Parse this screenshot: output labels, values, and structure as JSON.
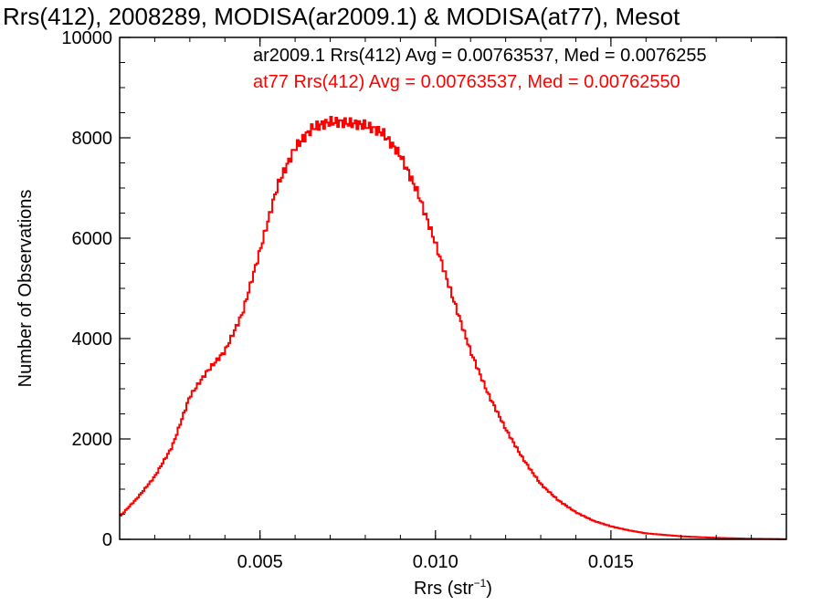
{
  "chart_data": {
    "type": "histogram",
    "title": "Rrs(412), 2008289, MODISA(ar2009.1) & MODISA(at77), Mesot",
    "xlabel_base": "Rrs (str",
    "xlabel_sup": "−1",
    "xlabel_end": ")",
    "ylabel": "Number of Observations",
    "xlim": [
      0.001,
      0.02
    ],
    "ylim": [
      0,
      10000
    ],
    "xticks": [
      {
        "value": 0.005,
        "label": "0.005"
      },
      {
        "value": 0.01,
        "label": "0.010"
      },
      {
        "value": 0.015,
        "label": "0.015"
      }
    ],
    "yticks": [
      {
        "value": 0,
        "label": "0"
      },
      {
        "value": 2000,
        "label": "2000"
      },
      {
        "value": 4000,
        "label": "4000"
      },
      {
        "value": 6000,
        "label": "6000"
      },
      {
        "value": 8000,
        "label": "8000"
      },
      {
        "value": 10000,
        "label": "10000"
      }
    ],
    "annotations": [
      {
        "text": "ar2009.1 Rrs(412) Avg = 0.00763537, Med = 0.0076255",
        "color": "#000000"
      },
      {
        "text": "at77 Rrs(412) Avg = 0.00763537, Med = 0.00762550",
        "color": "#ff0000"
      }
    ],
    "series": [
      {
        "name": "ar2009.1",
        "color": "#000000",
        "profile": [
          [
            0.001,
            450
          ],
          [
            0.0015,
            820
          ],
          [
            0.002,
            1250
          ],
          [
            0.0025,
            1850
          ],
          [
            0.003,
            2850
          ],
          [
            0.0035,
            3350
          ],
          [
            0.004,
            3750
          ],
          [
            0.0045,
            4500
          ],
          [
            0.005,
            5750
          ],
          [
            0.0055,
            7050
          ],
          [
            0.006,
            7800
          ],
          [
            0.0065,
            8200
          ],
          [
            0.007,
            8320
          ],
          [
            0.0075,
            8300
          ],
          [
            0.008,
            8250
          ],
          [
            0.0085,
            8100
          ],
          [
            0.009,
            7650
          ],
          [
            0.0095,
            6900
          ],
          [
            0.01,
            5900
          ],
          [
            0.0105,
            4800
          ],
          [
            0.011,
            3750
          ],
          [
            0.0115,
            2900
          ],
          [
            0.012,
            2200
          ],
          [
            0.0125,
            1600
          ],
          [
            0.013,
            1100
          ],
          [
            0.0135,
            780
          ],
          [
            0.014,
            540
          ],
          [
            0.0145,
            370
          ],
          [
            0.015,
            260
          ],
          [
            0.0155,
            180
          ],
          [
            0.016,
            120
          ],
          [
            0.017,
            60
          ],
          [
            0.018,
            30
          ],
          [
            0.019,
            12
          ],
          [
            0.02,
            5
          ]
        ]
      },
      {
        "name": "at77",
        "color": "#ff0000",
        "profile": [
          [
            0.001,
            450
          ],
          [
            0.0015,
            820
          ],
          [
            0.002,
            1250
          ],
          [
            0.0025,
            1850
          ],
          [
            0.003,
            2850
          ],
          [
            0.0035,
            3350
          ],
          [
            0.004,
            3750
          ],
          [
            0.0045,
            4500
          ],
          [
            0.005,
            5750
          ],
          [
            0.0055,
            7050
          ],
          [
            0.006,
            7800
          ],
          [
            0.0065,
            8200
          ],
          [
            0.007,
            8320
          ],
          [
            0.0075,
            8300
          ],
          [
            0.008,
            8250
          ],
          [
            0.0085,
            8100
          ],
          [
            0.009,
            7650
          ],
          [
            0.0095,
            6900
          ],
          [
            0.01,
            5900
          ],
          [
            0.0105,
            4800
          ],
          [
            0.011,
            3750
          ],
          [
            0.0115,
            2900
          ],
          [
            0.012,
            2200
          ],
          [
            0.0125,
            1600
          ],
          [
            0.013,
            1100
          ],
          [
            0.0135,
            780
          ],
          [
            0.014,
            540
          ],
          [
            0.0145,
            370
          ],
          [
            0.015,
            260
          ],
          [
            0.0155,
            180
          ],
          [
            0.016,
            120
          ],
          [
            0.017,
            60
          ],
          [
            0.018,
            30
          ],
          [
            0.019,
            12
          ],
          [
            0.02,
            5
          ]
        ]
      }
    ]
  }
}
